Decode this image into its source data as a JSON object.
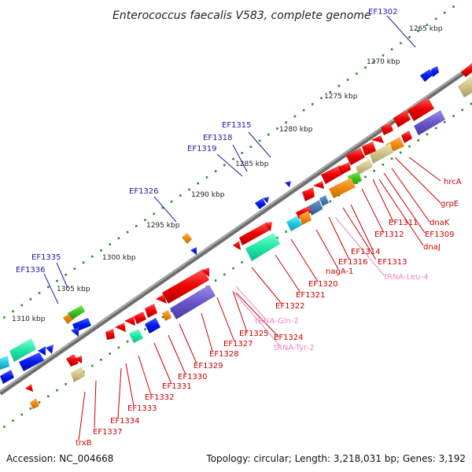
{
  "title": "Enterococcus faecalis V583, complete genome",
  "footer": {
    "accession": "Accession: NC_004668",
    "topology": "Topology: circular; Length: 3,218,031 bp; Genes: 3,192"
  },
  "scale_labels": [
    "1265 kbp",
    "1270 kbp",
    "1275 kbp",
    "1280 kbp",
    "1285 kbp",
    "1290 kbp",
    "1295 kbp",
    "1300 kbp",
    "1305 kbp",
    "1310 kbp"
  ],
  "top_labels": [
    "EF1302",
    "EF1315",
    "EF1318",
    "EF1319",
    "EF1326",
    "EF1335",
    "EF1336"
  ],
  "bottom_labels": [
    {
      "text": "hrcA",
      "kind": "gene"
    },
    {
      "text": "grpE",
      "kind": "gene"
    },
    {
      "text": "dnaK",
      "kind": "gene"
    },
    {
      "text": "EF1311",
      "kind": "gene"
    },
    {
      "text": "EF1309",
      "kind": "gene"
    },
    {
      "text": "EF1312",
      "kind": "gene"
    },
    {
      "text": "dnaJ",
      "kind": "gene"
    },
    {
      "text": "EF1314",
      "kind": "gene"
    },
    {
      "text": "EF1313",
      "kind": "gene"
    },
    {
      "text": "EF1316",
      "kind": "gene"
    },
    {
      "text": "tRNA-Leu-4",
      "kind": "rna"
    },
    {
      "text": "nagA-1",
      "kind": "gene"
    },
    {
      "text": "EF1320",
      "kind": "gene"
    },
    {
      "text": "EF1321",
      "kind": "gene"
    },
    {
      "text": "EF1322",
      "kind": "gene"
    },
    {
      "text": "tRNA-Gln-2",
      "kind": "rna"
    },
    {
      "text": "EF1325",
      "kind": "gene"
    },
    {
      "text": "EF1324",
      "kind": "gene"
    },
    {
      "text": "tRNA-Tyr-2",
      "kind": "rna"
    },
    {
      "text": "EF1327",
      "kind": "gene"
    },
    {
      "text": "EF1328",
      "kind": "gene"
    },
    {
      "text": "EF1329",
      "kind": "gene"
    },
    {
      "text": "EF1330",
      "kind": "gene"
    },
    {
      "text": "EF1331",
      "kind": "gene"
    },
    {
      "text": "EF1332",
      "kind": "gene"
    },
    {
      "text": "EF1333",
      "kind": "gene"
    },
    {
      "text": "EF1334",
      "kind": "gene"
    },
    {
      "text": "EF1337",
      "kind": "gene"
    },
    {
      "text": "trxB",
      "kind": "gene"
    }
  ],
  "colors": {
    "top_label": "#1a1aa8",
    "gene_label": "#cc0000",
    "rna_label": "#ee88bb",
    "backbone": "#8a8a8a",
    "ticks": "#2a8a2a"
  }
}
